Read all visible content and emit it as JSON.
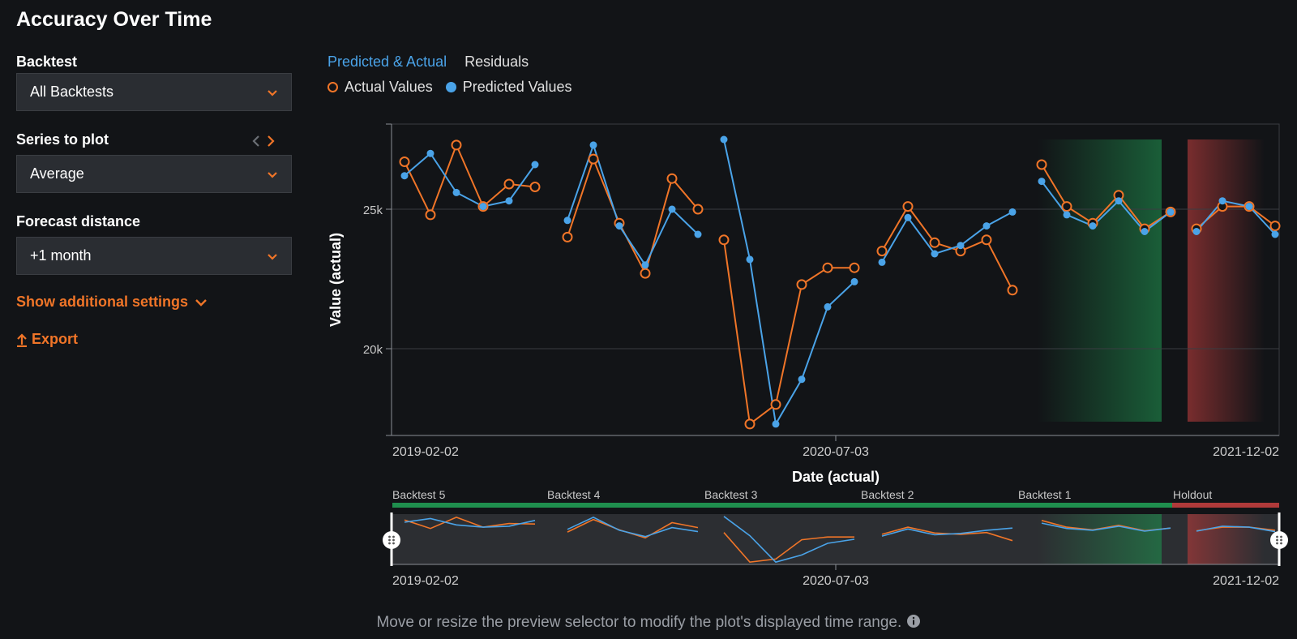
{
  "page": {
    "title": "Accuracy Over Time"
  },
  "sidebar": {
    "backtest": {
      "label": "Backtest",
      "value": "All Backtests"
    },
    "series": {
      "label": "Series to plot",
      "value": "Average"
    },
    "forecast": {
      "label": "Forecast distance",
      "value": "+1 month"
    },
    "show_settings": "Show additional settings",
    "export": "Export"
  },
  "tabs": {
    "active": "Predicted & Actual",
    "other": "Residuals"
  },
  "legend": {
    "actual": "Actual Values",
    "predicted": "Predicted Values"
  },
  "axes": {
    "ylabel": "Value (actual)",
    "xlabel": "Date (actual)",
    "yticks": [
      "25k",
      "20k"
    ],
    "xticks": [
      "2019-02-02",
      "2020-07-03",
      "2021-12-02"
    ]
  },
  "backtests": [
    "Backtest 5",
    "Backtest 4",
    "Backtest 3",
    "Backtest 2",
    "Backtest 1",
    "Holdout"
  ],
  "colors": {
    "actual": "#f07528",
    "predicted": "#4aa3e8",
    "backtest_bar": "#1f8f4e",
    "holdout_bar": "#b03a3a",
    "validation_region": "#1f8f4e",
    "holdout_region": "#b03a3a"
  },
  "footer": "Move or resize the preview selector to modify the plot's displayed time range.",
  "chart_data": {
    "type": "line",
    "title": "",
    "xlabel": "Date (actual)",
    "ylabel": "Value (actual)",
    "xlim": [
      0,
      34
    ],
    "ylim": [
      16800,
      28000
    ],
    "grid": true,
    "legend_position": "top-left",
    "series": [
      {
        "name": "Actual Values",
        "segments": [
          {
            "x": [
              0,
              1,
              2,
              3,
              4,
              5
            ],
            "y": [
              26700,
              24800,
              27300,
              25100,
              25900,
              25800
            ]
          },
          {
            "x": [
              6,
              7,
              8,
              9,
              10,
              11
            ],
            "y": [
              24000,
              26800,
              24500,
              22700,
              26100,
              25000
            ]
          },
          {
            "x": [
              12,
              13,
              14,
              15,
              16,
              17
            ],
            "y": [
              23900,
              17300,
              18000,
              22300,
              22900,
              22900
            ]
          },
          {
            "x": [
              18,
              19,
              20,
              21,
              22,
              23
            ],
            "y": [
              23500,
              25100,
              23800,
              23500,
              23900,
              22100
            ]
          },
          {
            "x": [
              24,
              25,
              26,
              27,
              28,
              29
            ],
            "y": [
              26600,
              25100,
              24500,
              25500,
              24300,
              24900
            ]
          },
          {
            "x": [
              30,
              31,
              32,
              33
            ],
            "y": [
              24300,
              25100,
              25100,
              24400
            ]
          }
        ]
      },
      {
        "name": "Predicted Values",
        "segments": [
          {
            "x": [
              0,
              1,
              2,
              3,
              4,
              5
            ],
            "y": [
              26200,
              27000,
              25600,
              25100,
              25300,
              26600
            ]
          },
          {
            "x": [
              6,
              7,
              8,
              9,
              10,
              11
            ],
            "y": [
              24600,
              27300,
              24400,
              23000,
              25000,
              24100
            ]
          },
          {
            "x": [
              12,
              13,
              14,
              15,
              16,
              17
            ],
            "y": [
              27500,
              23200,
              17300,
              18900,
              21500,
              22400
            ]
          },
          {
            "x": [
              18,
              19,
              20,
              21,
              22,
              23
            ],
            "y": [
              23100,
              24700,
              23400,
              23700,
              24400,
              24900
            ]
          },
          {
            "x": [
              24,
              25,
              26,
              27,
              28,
              29
            ],
            "y": [
              26000,
              24800,
              24400,
              25300,
              24200,
              24900
            ]
          },
          {
            "x": [
              30,
              31,
              32,
              33
            ],
            "y": [
              24200,
              25300,
              25100,
              24100
            ]
          }
        ]
      }
    ]
  }
}
